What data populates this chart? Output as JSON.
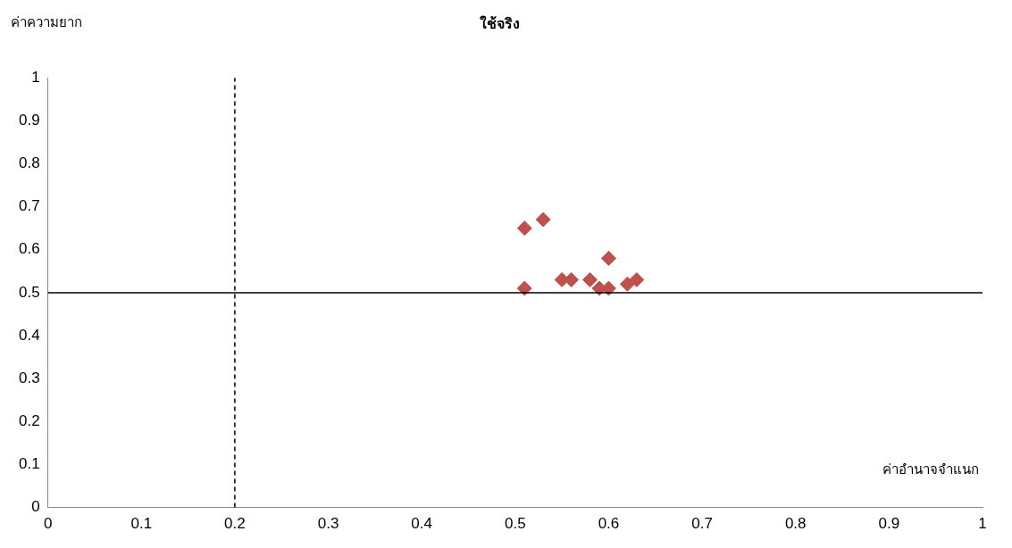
{
  "chart_data": {
    "type": "scatter",
    "title": "ใช้จริง",
    "xlabel": "ค่าอำนาจจำแนก",
    "ylabel": "ค่าความยาก",
    "x": [
      0.51,
      0.53,
      0.51,
      0.55,
      0.56,
      0.58,
      0.59,
      0.6,
      0.6,
      0.62,
      0.63
    ],
    "series": [
      {
        "color": "#c0504d",
        "values": [
          0.65,
          0.67,
          0.51,
          0.53,
          0.53,
          0.53,
          0.51,
          0.58,
          0.51,
          0.52,
          0.53
        ]
      }
    ],
    "xlim": [
      0,
      1
    ],
    "xticks": [
      0,
      0.1,
      0.2,
      0.3,
      0.4,
      0.5,
      0.6,
      0.7,
      0.8,
      0.9,
      1
    ],
    "ylim": [
      0,
      1
    ],
    "yticks": [
      0,
      0.1,
      0.2,
      0.3,
      0.4,
      0.5,
      0.6,
      0.7,
      0.8,
      0.9,
      1
    ],
    "marker": "diamond",
    "grid": false,
    "legend": false,
    "ref_lines": [
      {
        "axis": "x",
        "value": 0.2,
        "line_style": "dashed",
        "color": "#000000"
      },
      {
        "axis": "y",
        "value": 0.5,
        "line_style": "solid",
        "color": "#000000"
      }
    ]
  }
}
